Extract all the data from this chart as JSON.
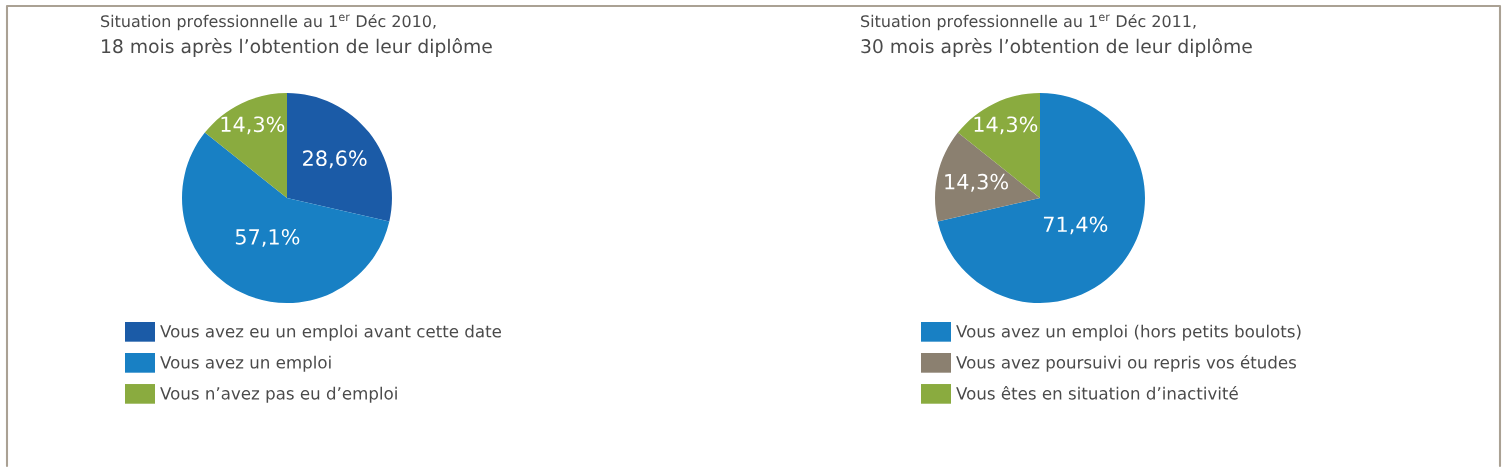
{
  "chart_data": [
    {
      "type": "pie",
      "title": "Situation professionnelle au 1$^{er}$ Déc 2010,",
      "subtitle": "18 mois après l’obtention de leur diplôme",
      "categories": [
        "Vous avez eu un emploi avant cette date",
        "Vous avez un emploi",
        "Vous n’avez pas eu d’emploi"
      ],
      "values": [
        28.6,
        57.1,
        14.3
      ],
      "colors": [
        "#1b5ba7",
        "#1880c4",
        "#8aab3f"
      ],
      "value_labels": [
        "28,6%",
        "57,1%",
        "14,3%"
      ],
      "legend": "bottom"
    },
    {
      "type": "pie",
      "title": "Situation professionnelle au 1$^{er}$ Déc 2011,",
      "subtitle": "30 mois après l’obtention de leur diplôme",
      "categories": [
        "Vous avez un emploi (hors petits boulots)",
        "Vous avez poursuivi ou repris vos études",
        "Vous êtes en situation d’inactivité"
      ],
      "values": [
        71.4,
        14.3,
        14.3
      ],
      "colors": [
        "#1880c4",
        "#8b8070",
        "#8aab3f"
      ],
      "value_labels": [
        "71,4%",
        "14,3%",
        "14,3%"
      ],
      "legend": "bottom"
    }
  ]
}
